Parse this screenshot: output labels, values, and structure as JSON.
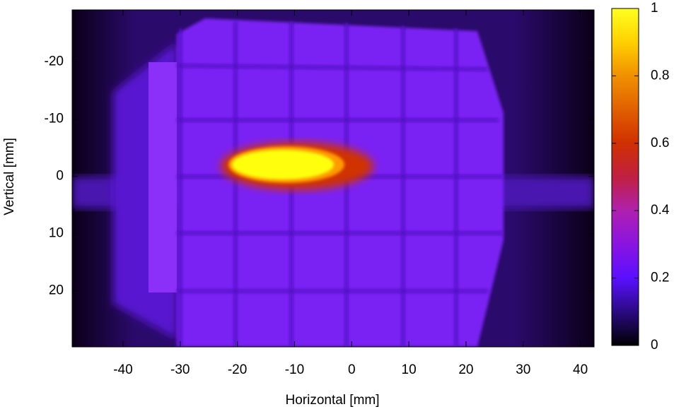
{
  "chart_data": {
    "type": "heatmap",
    "x_label": "Horizontal [mm]",
    "y_label": "Vertical [mm]",
    "xlim": [
      -48.9,
      42.4
    ],
    "ylim": [
      -29.1,
      29.8
    ],
    "y_reversed": true,
    "xticks": [
      -40,
      -30,
      -20,
      -10,
      0,
      10,
      20,
      30,
      40
    ],
    "yticks": [
      -20,
      -10,
      0,
      10,
      20
    ],
    "colorbar": {
      "lim": [
        0,
        1
      ],
      "ticks": [
        0,
        0.2,
        0.4,
        0.6,
        0.8,
        1
      ]
    }
  }
}
